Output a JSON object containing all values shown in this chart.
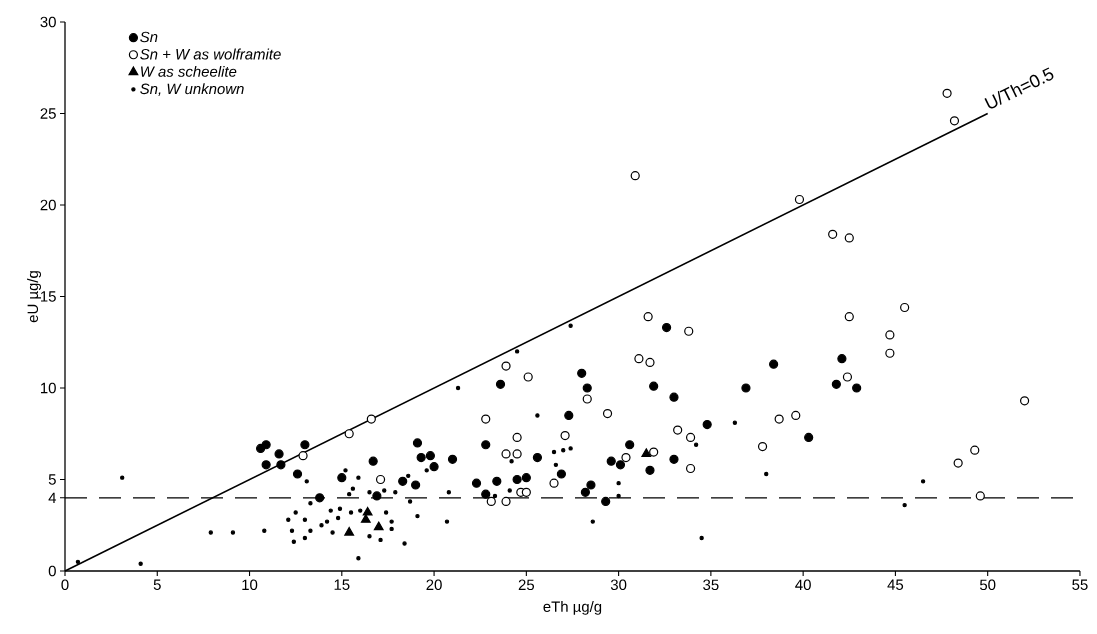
{
  "chart_data": {
    "type": "scatter",
    "xlabel": "eTh µg/g",
    "ylabel": "eU µg/g",
    "xlim": [
      0,
      55
    ],
    "ylim": [
      0,
      30
    ],
    "xticks": [
      0,
      5,
      10,
      15,
      20,
      25,
      30,
      35,
      40,
      45,
      50,
      55
    ],
    "yticks": [
      0,
      4,
      5,
      10,
      15,
      20,
      25,
      30
    ],
    "grid": false,
    "legend": "top left",
    "series": [
      {
        "name": "Sn",
        "color": "#000000",
        "marker": "circle",
        "x": [
          10.6,
          10.9,
          10.9,
          11.6,
          11.7,
          13.0,
          12.6,
          13.8,
          15.0,
          16.7,
          16.9,
          18.3,
          19.0,
          19.1,
          19.3,
          19.8,
          20.0,
          21.0,
          22.8,
          23.6,
          22.3,
          23.4,
          22.8,
          24.5,
          25.0,
          25.6,
          27.3,
          26.9,
          28.0,
          28.3,
          28.2,
          28.5,
          29.3,
          29.6,
          30.1,
          30.6,
          31.7,
          31.9,
          32.6,
          33.0,
          33.0,
          34.8,
          36.9,
          38.4,
          42.1,
          41.8,
          42.9,
          40.3
        ],
        "values": [
          6.7,
          6.9,
          5.8,
          6.4,
          5.8,
          6.9,
          5.3,
          4.0,
          5.1,
          6.0,
          4.1,
          4.9,
          4.7,
          7.0,
          6.2,
          6.3,
          5.7,
          6.1,
          6.9,
          10.2,
          4.8,
          4.9,
          4.2,
          5.0,
          5.1,
          6.2,
          8.5,
          5.3,
          10.8,
          10.0,
          4.3,
          4.7,
          3.8,
          6.0,
          5.8,
          6.9,
          5.5,
          10.1,
          13.3,
          9.5,
          6.1,
          8.0,
          10.0,
          11.3,
          11.6,
          10.2,
          10.0,
          7.3
        ]
      },
      {
        "name": "Sn + W as wolframite",
        "color": "#ffffff",
        "marker": "circle",
        "x": [
          15.4,
          16.6,
          12.9,
          17.1,
          23.9,
          25.1,
          22.8,
          24.5,
          24.5,
          23.9,
          23.1,
          23.9,
          24.7,
          25.0,
          26.5,
          27.1,
          28.3,
          29.4,
          30.4,
          31.9,
          31.6,
          33.8,
          31.1,
          31.7,
          33.2,
          33.9,
          33.9,
          30.9,
          47.8,
          48.2,
          39.8,
          41.6,
          42.5,
          42.5,
          45.5,
          44.7,
          44.7,
          42.4,
          52.0,
          39.6,
          38.7,
          37.8,
          48.4,
          49.3,
          49.6
        ],
        "values": [
          7.5,
          8.3,
          6.3,
          5.0,
          11.2,
          10.6,
          8.3,
          7.3,
          6.4,
          6.4,
          3.8,
          3.8,
          4.3,
          4.3,
          4.8,
          7.4,
          9.4,
          8.6,
          6.2,
          6.5,
          13.9,
          13.1,
          11.6,
          11.4,
          7.7,
          7.3,
          5.6,
          21.6,
          26.1,
          24.6,
          20.3,
          18.4,
          18.2,
          13.9,
          14.4,
          12.9,
          11.9,
          10.6,
          9.3,
          8.5,
          8.3,
          6.8,
          5.9,
          6.6,
          4.1
        ]
      },
      {
        "name": "W as scheelite",
        "color": "#000000",
        "marker": "triangle",
        "x": [
          16.4,
          15.4,
          17.0,
          16.3,
          31.5
        ],
        "values": [
          3.2,
          2.1,
          2.4,
          2.8,
          6.4
        ]
      },
      {
        "name": "Sn, W unknown",
        "color": "#000000",
        "marker": "dot",
        "x": [
          7.9,
          9.1,
          10.8,
          12.1,
          12.3,
          12.4,
          12.5,
          13.0,
          13.0,
          13.1,
          13.3,
          13.3,
          13.9,
          14.2,
          14.4,
          14.5,
          14.8,
          14.9,
          15.2,
          15.4,
          15.5,
          15.6,
          15.9,
          15.9,
          16.0,
          16.5,
          16.5,
          17.1,
          17.3,
          17.4,
          17.7,
          17.7,
          17.9,
          18.4,
          18.6,
          18.7,
          19.1,
          19.6,
          20.8,
          20.7,
          3.1,
          4.1,
          0.7,
          21.3,
          24.5,
          27.4,
          25.6,
          26.5,
          27.0,
          27.4,
          26.6,
          24.2,
          24.1,
          30.0,
          30.0,
          28.6,
          34.5,
          36.3,
          34.2,
          23.3,
          38.0,
          46.5,
          45.5
        ],
        "values": [
          2.1,
          2.1,
          2.2,
          2.8,
          2.2,
          1.6,
          3.2,
          2.8,
          1.8,
          4.9,
          2.2,
          3.7,
          2.5,
          2.7,
          3.3,
          2.1,
          2.9,
          3.4,
          5.5,
          4.2,
          3.2,
          4.5,
          5.1,
          0.7,
          3.3,
          4.3,
          1.9,
          1.7,
          4.4,
          3.2,
          2.7,
          2.3,
          4.3,
          1.5,
          5.2,
          3.8,
          3.0,
          5.5,
          4.3,
          2.7,
          5.1,
          0.4,
          0.5,
          10.0,
          12.0,
          13.4,
          8.5,
          6.5,
          6.6,
          6.7,
          5.8,
          6.0,
          4.4,
          4.8,
          4.1,
          2.7,
          1.8,
          8.1,
          6.9,
          4.1,
          5.3,
          4.9,
          3.6
        ]
      },
      {
        "type": "line",
        "color": "#000000",
        "marker": "none",
        "x": [
          0,
          50
        ],
        "values": [
          0,
          25
        ]
      }
    ],
    "ref_lines": [
      {
        "axis": "y",
        "value": 4,
        "line_style": "dashed",
        "color": "#000000"
      }
    ],
    "annotations": [
      {
        "text": "U/Th=0.5",
        "x": 50,
        "y": 25
      }
    ]
  }
}
